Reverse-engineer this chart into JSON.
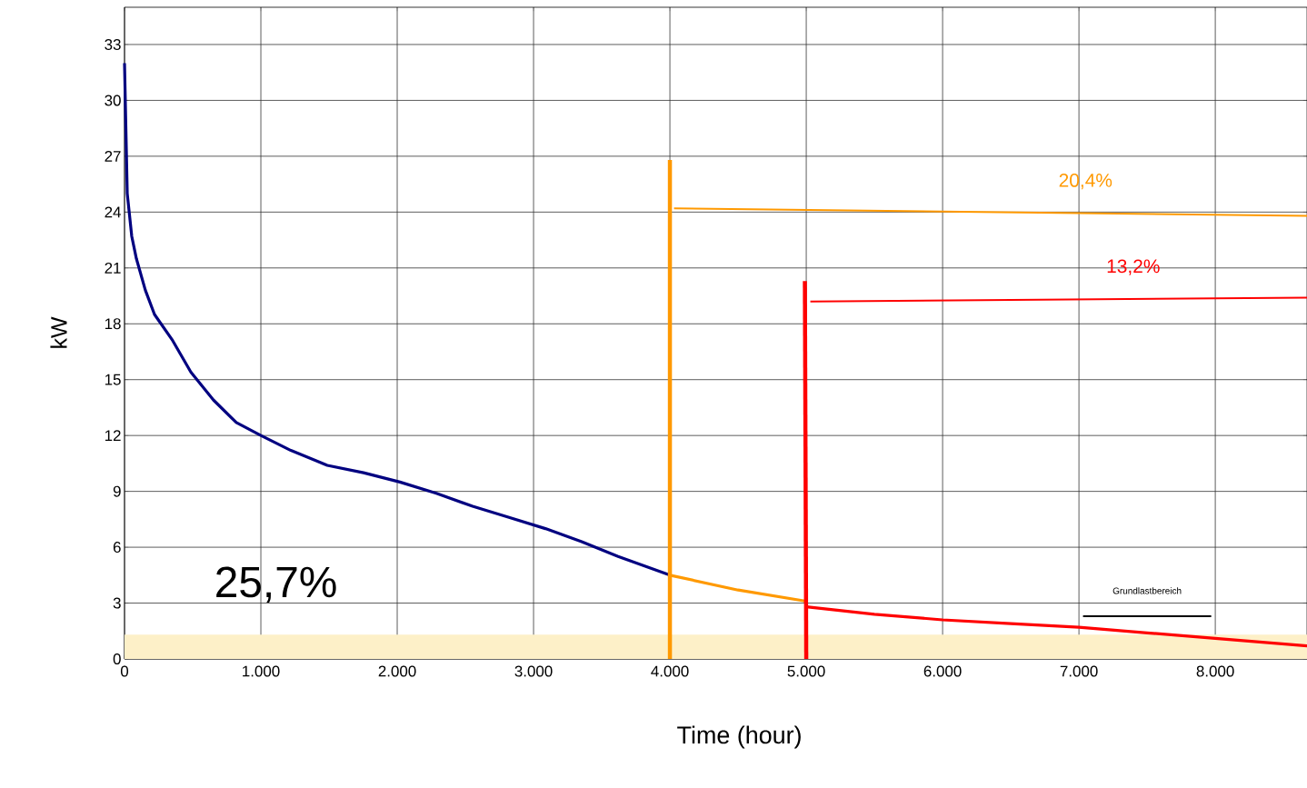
{
  "chart_data": {
    "type": "line",
    "xlabel": "Time (hour)",
    "ylabel": "kW",
    "xlim": [
      0,
      8673
    ],
    "ylim": [
      0,
      35
    ],
    "xticks": [
      0,
      {
        "value": 1000,
        "label": "1.000"
      },
      {
        "value": 2000,
        "label": "2.000"
      },
      {
        "value": 3000,
        "label": "3.000"
      },
      {
        "value": 4000,
        "label": "4.000"
      },
      {
        "value": 5000,
        "label": "5.000"
      },
      {
        "value": 6000,
        "label": "6.000"
      },
      {
        "value": 7000,
        "label": "7.000"
      },
      {
        "value": 8000,
        "label": "8.000"
      }
    ],
    "yticks": [
      0,
      3,
      6,
      9,
      12,
      15,
      18,
      21,
      24,
      27,
      30,
      33
    ],
    "grid": true,
    "bands": [
      {
        "axis": "y",
        "from": 0,
        "to": 1.3,
        "color": "#fdf0c8"
      }
    ],
    "annotations": [
      "25,7%"
    ],
    "series": [
      {
        "color": "#000080",
        "x": [
          0,
          20,
          53,
          87,
          153,
          220,
          353,
          487,
          653,
          820,
          1000,
          1220,
          1487,
          1753,
          2020,
          2287,
          2553,
          2820,
          3087,
          3353,
          3620,
          4000
        ],
        "values": [
          32,
          25,
          22.7,
          21.5,
          19.8,
          18.5,
          17.1,
          15.4,
          13.9,
          12.7,
          12,
          11.2,
          10.4,
          10,
          9.5,
          8.9,
          8.2,
          7.6,
          7,
          6.3,
          5.5,
          4.5
        ]
      },
      {
        "color": "#ff9900",
        "x": [
          4000,
          4500,
          5000
        ],
        "values": [
          4.5,
          3.7,
          3.1
        ]
      },
      {
        "color": "#ff0000",
        "x": [
          5000,
          5500,
          6000,
          6500,
          7000,
          7500,
          8000,
          8673
        ],
        "values": [
          2.8,
          2.4,
          2.1,
          1.9,
          1.7,
          1.4,
          1.1,
          0.7
        ]
      },
      {
        "color": "#ff9900",
        "x": [
          4000,
          4000
        ],
        "values": [
          0,
          26.8
        ]
      },
      {
        "color": "#ff0000",
        "x": [
          5000,
          4990
        ],
        "values": [
          0,
          20.3
        ]
      },
      {
        "name": "20,4%",
        "color": "#ff9900",
        "x": [
          8673,
          4030
        ],
        "values": [
          23.8,
          24.2
        ]
      },
      {
        "name": "13,2%",
        "color": "#ff0000",
        "x": [
          8673,
          5030
        ],
        "values": [
          19.4,
          19.2
        ]
      },
      {
        "name": "Grundlastbereich",
        "color": "#000000",
        "x": [
          7030,
          7970
        ],
        "values": [
          2.3,
          2.3
        ]
      }
    ]
  }
}
